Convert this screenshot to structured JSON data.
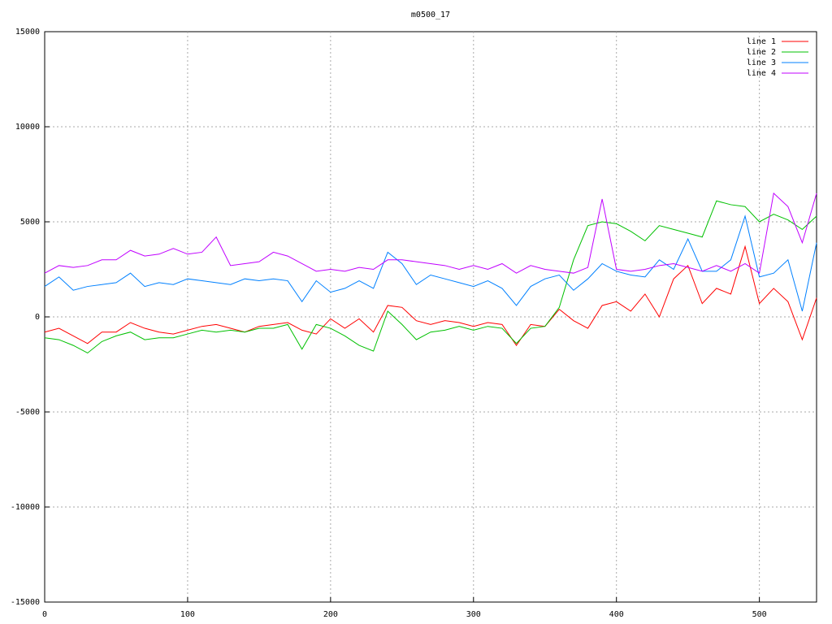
{
  "chart_data": {
    "type": "line",
    "title": "m0500_17",
    "x": [
      0,
      10,
      20,
      30,
      40,
      50,
      60,
      70,
      80,
      90,
      100,
      110,
      120,
      130,
      140,
      150,
      160,
      170,
      180,
      190,
      200,
      210,
      220,
      230,
      240,
      250,
      260,
      270,
      280,
      290,
      300,
      310,
      320,
      330,
      340,
      350,
      360,
      370,
      380,
      390,
      400,
      410,
      420,
      430,
      440,
      450,
      460,
      470,
      480,
      490,
      500,
      510,
      520,
      530,
      540
    ],
    "series": [
      {
        "name": "line 1",
        "color": "#ff0000",
        "values": [
          -800,
          -600,
          -1000,
          -1400,
          -800,
          -800,
          -300,
          -600,
          -800,
          -900,
          -700,
          -500,
          -400,
          -600,
          -800,
          -500,
          -400,
          -300,
          -700,
          -900,
          -100,
          -600,
          -100,
          -800,
          600,
          500,
          -200,
          -400,
          -200,
          -300,
          -500,
          -300,
          -400,
          -1500,
          -400,
          -500,
          400,
          -200,
          -600,
          600,
          800,
          300,
          1200,
          0,
          2000,
          2700,
          700,
          1500,
          1200,
          3700,
          700,
          1500,
          800,
          -1200,
          1000
        ]
      },
      {
        "name": "line 2",
        "color": "#00c000",
        "values": [
          -1100,
          -1200,
          -1500,
          -1900,
          -1300,
          -1000,
          -800,
          -1200,
          -1100,
          -1100,
          -900,
          -700,
          -800,
          -700,
          -800,
          -600,
          -600,
          -400,
          -1700,
          -400,
          -600,
          -1000,
          -1500,
          -1800,
          300,
          -400,
          -1200,
          -800,
          -700,
          -500,
          -700,
          -500,
          -600,
          -1400,
          -600,
          -500,
          500,
          3000,
          4800,
          5000,
          4900,
          4500,
          4000,
          4800,
          4600,
          4400,
          4200,
          6100,
          5900,
          5800,
          5000,
          5400,
          5100,
          4600,
          5300
        ]
      },
      {
        "name": "line 3",
        "color": "#0080ff",
        "values": [
          1600,
          2100,
          1400,
          1600,
          1700,
          1800,
          2300,
          1600,
          1800,
          1700,
          2000,
          1900,
          1800,
          1700,
          2000,
          1900,
          2000,
          1900,
          800,
          1900,
          1300,
          1500,
          1900,
          1500,
          3400,
          2800,
          1700,
          2200,
          2000,
          1800,
          1600,
          1900,
          1500,
          600,
          1600,
          2000,
          2200,
          1400,
          2000,
          2800,
          2400,
          2200,
          2100,
          3000,
          2500,
          4100,
          2400,
          2400,
          3000,
          5300,
          2100,
          2300,
          3000,
          300,
          3900
        ]
      },
      {
        "name": "line 4",
        "color": "#c000ff",
        "values": [
          2300,
          2700,
          2600,
          2700,
          3000,
          3000,
          3500,
          3200,
          3300,
          3600,
          3300,
          3400,
          4200,
          2700,
          2800,
          2900,
          3400,
          3200,
          2800,
          2400,
          2500,
          2400,
          2600,
          2500,
          3000,
          3000,
          2900,
          2800,
          2700,
          2500,
          2700,
          2500,
          2800,
          2300,
          2700,
          2500,
          2400,
          2300,
          2600,
          6200,
          2500,
          2400,
          2500,
          2700,
          2800,
          2600,
          2400,
          2700,
          2400,
          2800,
          2300,
          6500,
          5800,
          3900,
          6500
        ]
      }
    ],
    "xlim": [
      0,
      540
    ],
    "xticks": [
      0,
      100,
      200,
      300,
      400,
      500
    ],
    "ylim": [
      -15000,
      15000
    ],
    "yticks": [
      -15000,
      -10000,
      -5000,
      0,
      5000,
      10000,
      15000
    ],
    "grid": true,
    "legend": "top-right"
  }
}
